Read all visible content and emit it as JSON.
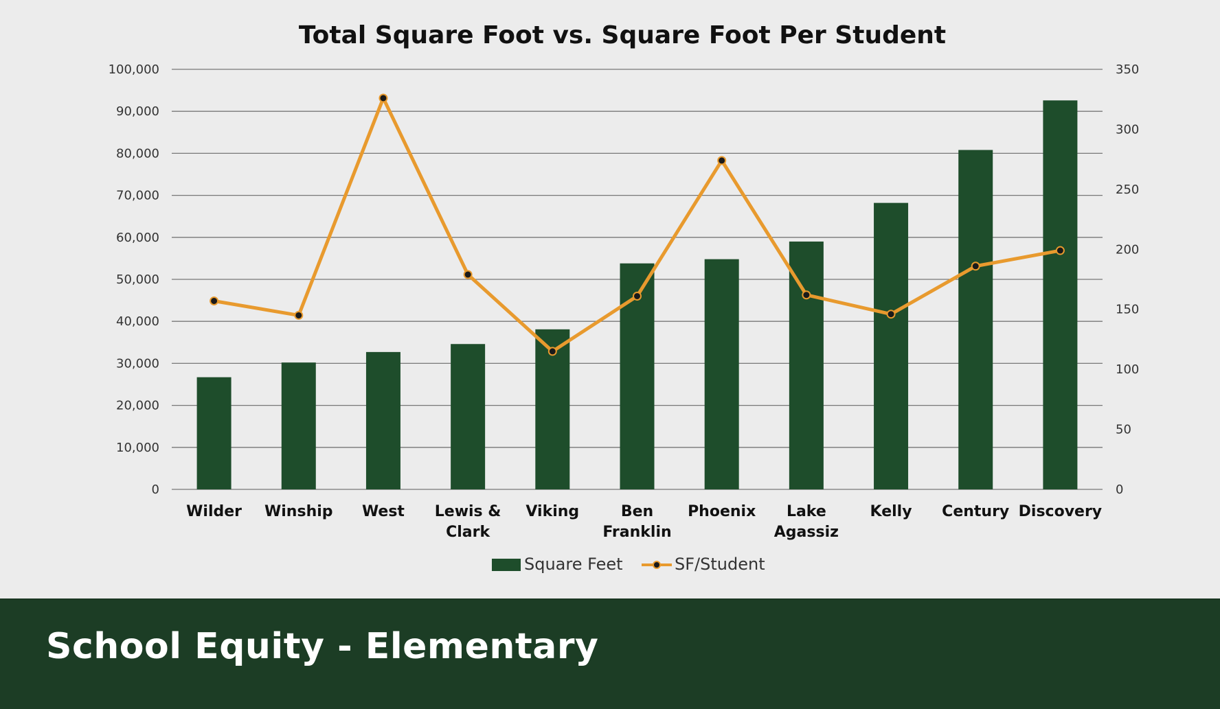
{
  "footer": {
    "title": "School Equity - Elementary"
  },
  "legend": {
    "bar_label": "Square Feet",
    "line_label": "SF/Student"
  },
  "colors": {
    "bar": "#1e4d2b",
    "line": "#e89a2e",
    "marker": "#1a1a1a",
    "grid": "#777777",
    "footer": "#1c3d25"
  },
  "chart_data": {
    "type": "bar",
    "title": "Total Square Foot vs. Square Foot Per Student",
    "categories": [
      [
        "Wilder"
      ],
      [
        "Winship"
      ],
      [
        "West"
      ],
      [
        "Lewis &",
        "Clark"
      ],
      [
        "Viking"
      ],
      [
        "Ben",
        "Franklin"
      ],
      [
        "Phoenix"
      ],
      [
        "Lake",
        "Agassiz"
      ],
      [
        "Kelly"
      ],
      [
        "Century"
      ],
      [
        "Discovery"
      ]
    ],
    "series": [
      {
        "name": "Square Feet",
        "type": "bar",
        "axis": "left",
        "values": [
          26700,
          30200,
          32700,
          34600,
          38100,
          53800,
          54800,
          59000,
          68200,
          80800,
          92600
        ]
      },
      {
        "name": "SF/Student",
        "type": "line",
        "axis": "right",
        "values": [
          157,
          145,
          326,
          179,
          115,
          161,
          274,
          162,
          146,
          186,
          199
        ]
      }
    ],
    "ylim_left": [
      0,
      100000
    ],
    "yticks_left": [
      "0",
      "10,000",
      "20,000",
      "30,000",
      "40,000",
      "50,000",
      "60,000",
      "70,000",
      "80,000",
      "90,000",
      "100,000"
    ],
    "ylim_right": [
      0,
      350
    ],
    "yticks_right": [
      "0",
      "50",
      "100",
      "150",
      "200",
      "250",
      "300",
      "350"
    ],
    "grid": true,
    "legend_position": "bottom"
  }
}
